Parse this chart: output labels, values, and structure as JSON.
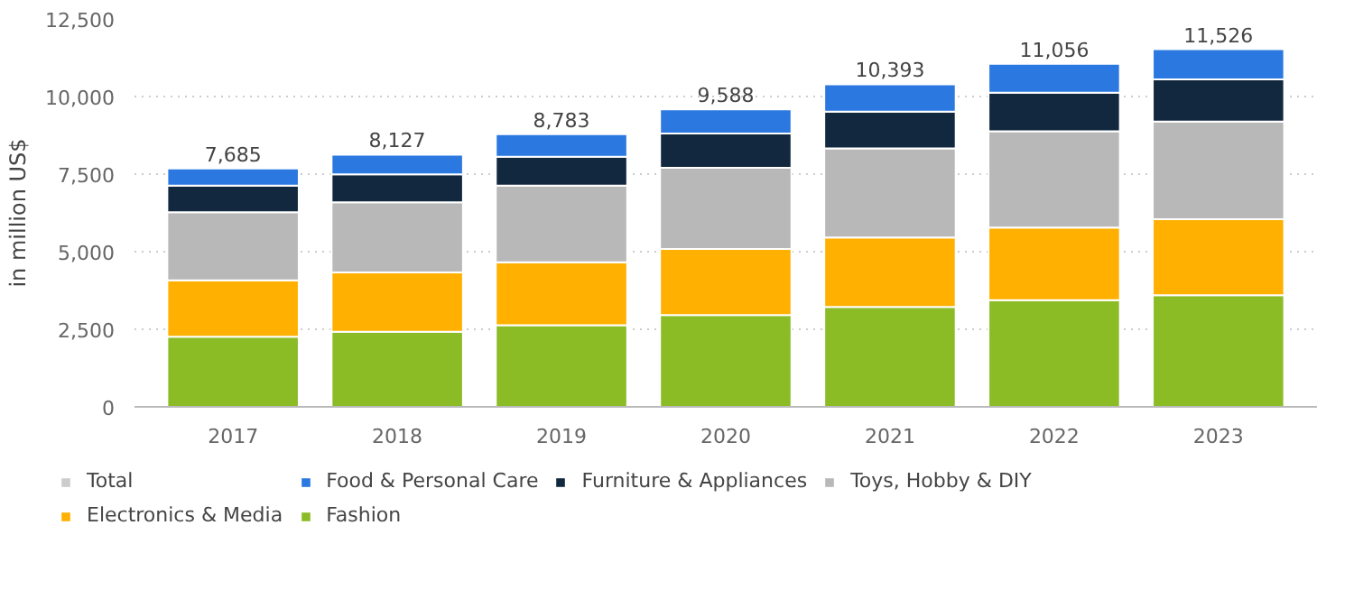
{
  "chart_data": {
    "type": "bar",
    "stacked": true,
    "ylabel": "in million US$",
    "categories": [
      "2017",
      "2018",
      "2019",
      "2020",
      "2021",
      "2022",
      "2023"
    ],
    "series": [
      {
        "name": "Fashion",
        "color": "#8bbc26",
        "values": [
          2260,
          2420,
          2630,
          2955,
          3220,
          3440,
          3600
        ]
      },
      {
        "name": "Electronics & Media",
        "color": "#ffb000",
        "values": [
          1820,
          1910,
          2030,
          2130,
          2240,
          2340,
          2450
        ]
      },
      {
        "name": "Toys, Hobby & DIY",
        "color": "#b8b8b8",
        "values": [
          2190,
          2260,
          2470,
          2615,
          2870,
          3100,
          3140
        ]
      },
      {
        "name": "Furniture & Appliances",
        "color": "#12283f",
        "values": [
          860,
          900,
          930,
          1110,
          1180,
          1240,
          1360
        ]
      },
      {
        "name": "Food & Personal Care",
        "color": "#2a78e0",
        "values": [
          555,
          637,
          723,
          778,
          883,
          936,
          976
        ]
      },
      {
        "name": "Total",
        "color": "#cccccc",
        "values": [
          null,
          null,
          null,
          null,
          null,
          null,
          null
        ]
      }
    ],
    "totals": [
      "7,685",
      "8,127",
      "8,783",
      "9,588",
      "10,393",
      "11,056",
      "11,526"
    ],
    "ylim": [
      0,
      12500
    ],
    "yticks": [
      0,
      {
        "value": 2500,
        "label": "2,500"
      },
      {
        "value": 5000,
        "label": "5,000"
      },
      {
        "value": 7500,
        "label": "7,500"
      },
      {
        "value": 10000,
        "label": "10,000"
      },
      {
        "value": 12500,
        "label": "12,500"
      }
    ],
    "grid": "y",
    "legend": "bottom"
  }
}
